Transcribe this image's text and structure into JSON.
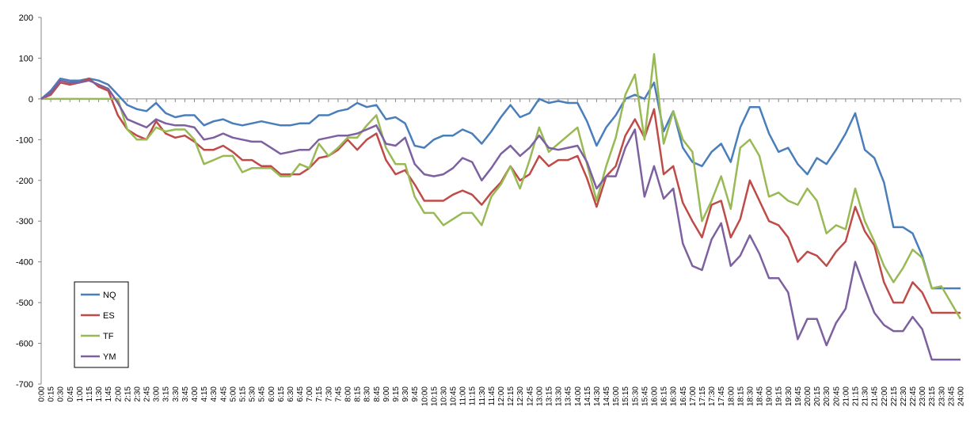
{
  "chart_data": {
    "type": "line",
    "title": "",
    "xlabel": "",
    "ylabel": "",
    "ylim": [
      -700,
      200
    ],
    "yticks": [
      200,
      100,
      0,
      -100,
      -200,
      -300,
      -400,
      -500,
      -600,
      -700
    ],
    "x": [
      "0:00",
      "0:15",
      "0:30",
      "0:45",
      "1:00",
      "1:15",
      "1:30",
      "1:45",
      "2:00",
      "2:15",
      "2:30",
      "2:45",
      "3:00",
      "3:15",
      "3:30",
      "3:45",
      "4:00",
      "4:15",
      "4:30",
      "4:45",
      "5:00",
      "5:15",
      "5:30",
      "5:45",
      "6:00",
      "6:15",
      "6:30",
      "6:45",
      "7:00",
      "7:15",
      "7:30",
      "7:45",
      "8:00",
      "8:15",
      "8:30",
      "8:45",
      "9:00",
      "9:15",
      "9:30",
      "9:45",
      "10:00",
      "10:15",
      "10:30",
      "10:45",
      "11:00",
      "11:15",
      "11:30",
      "11:45",
      "12:00",
      "12:15",
      "12:30",
      "12:45",
      "13:00",
      "13:15",
      "13:30",
      "13:45",
      "14:00",
      "14:15",
      "14:30",
      "14:45",
      "15:00",
      "15:15",
      "15:30",
      "15:45",
      "16:00",
      "16:15",
      "16:30",
      "16:45",
      "17:00",
      "17:15",
      "17:30",
      "17:45",
      "18:00",
      "18:15",
      "18:30",
      "18:45",
      "19:00",
      "19:15",
      "19:30",
      "19:45",
      "20:00",
      "20:15",
      "20:30",
      "20:45",
      "21:00",
      "21:15",
      "21:30",
      "21:45",
      "22:00",
      "22:15",
      "22:30",
      "22:45",
      "23:00",
      "23:15",
      "23:30",
      "23:45",
      "24:00"
    ],
    "legend_position": "bottom-left",
    "grid": false,
    "series": [
      {
        "name": "NQ",
        "color": "#4a7ebb",
        "values": [
          0,
          20,
          50,
          45,
          45,
          50,
          45,
          35,
          10,
          -15,
          -25,
          -30,
          -10,
          -35,
          -45,
          -40,
          -40,
          -65,
          -55,
          -50,
          -60,
          -65,
          -60,
          -55,
          -60,
          -65,
          -65,
          -60,
          -60,
          -40,
          -40,
          -30,
          -25,
          -10,
          -20,
          -15,
          -50,
          -45,
          -60,
          -115,
          -120,
          -100,
          -90,
          -90,
          -75,
          -85,
          -110,
          -80,
          -45,
          -15,
          -45,
          -35,
          0,
          -10,
          -5,
          -10,
          -10,
          -55,
          -115,
          -70,
          -40,
          0,
          10,
          0,
          40,
          -80,
          -30,
          -120,
          -155,
          -165,
          -130,
          -110,
          -155,
          -70,
          -20,
          -20,
          -85,
          -130,
          -120,
          -160,
          -185,
          -145,
          -160,
          -125,
          -85,
          -35,
          -125,
          -145,
          -205,
          -315,
          -315,
          -330,
          -385,
          -465,
          -465,
          -465,
          -465
        ]
      },
      {
        "name": "ES",
        "color": "#be4b48",
        "values": [
          0,
          10,
          40,
          35,
          40,
          50,
          30,
          20,
          -40,
          -75,
          -90,
          -100,
          -55,
          -85,
          -95,
          -90,
          -105,
          -125,
          -125,
          -115,
          -130,
          -150,
          -150,
          -165,
          -165,
          -185,
          -185,
          -185,
          -170,
          -145,
          -140,
          -125,
          -100,
          -125,
          -100,
          -85,
          -150,
          -185,
          -175,
          -210,
          -250,
          -250,
          -250,
          -235,
          -225,
          -235,
          -260,
          -230,
          -205,
          -165,
          -200,
          -185,
          -140,
          -165,
          -150,
          -150,
          -140,
          -195,
          -265,
          -190,
          -165,
          -90,
          -50,
          -95,
          -25,
          -185,
          -165,
          -255,
          -300,
          -340,
          -260,
          -250,
          -340,
          -295,
          -200,
          -250,
          -300,
          -310,
          -340,
          -400,
          -375,
          -385,
          -410,
          -375,
          -350,
          -265,
          -325,
          -360,
          -450,
          -500,
          -500,
          -450,
          -475,
          -525,
          -525,
          -525,
          -525
        ]
      },
      {
        "name": "TF",
        "color": "#98b954",
        "values": [
          0,
          0,
          0,
          0,
          0,
          0,
          0,
          0,
          0,
          -75,
          -100,
          -100,
          -70,
          -80,
          -75,
          -75,
          -100,
          -160,
          -150,
          -140,
          -140,
          -180,
          -170,
          -170,
          -170,
          -190,
          -190,
          -160,
          -170,
          -110,
          -140,
          -120,
          -95,
          -95,
          -65,
          -40,
          -120,
          -160,
          -160,
          -240,
          -280,
          -280,
          -310,
          -295,
          -280,
          -280,
          -310,
          -240,
          -210,
          -165,
          -220,
          -150,
          -70,
          -130,
          -110,
          -90,
          -70,
          -160,
          -250,
          -165,
          -95,
          10,
          60,
          -100,
          110,
          -110,
          -30,
          -100,
          -130,
          -300,
          -250,
          -190,
          -270,
          -120,
          -100,
          -140,
          -240,
          -230,
          -250,
          -260,
          -220,
          -250,
          -330,
          -310,
          -320,
          -220,
          -300,
          -350,
          -410,
          -450,
          -415,
          -370,
          -390,
          -465,
          -460,
          -500,
          -540
        ]
      },
      {
        "name": "YM",
        "color": "#7d60a0",
        "values": [
          0,
          15,
          45,
          40,
          40,
          45,
          35,
          25,
          -10,
          -50,
          -60,
          -70,
          -50,
          -60,
          -65,
          -65,
          -70,
          -100,
          -95,
          -85,
          -95,
          -100,
          -105,
          -105,
          -120,
          -135,
          -130,
          -125,
          -125,
          -100,
          -95,
          -90,
          -90,
          -85,
          -75,
          -65,
          -110,
          -115,
          -95,
          -160,
          -185,
          -190,
          -185,
          -170,
          -145,
          -155,
          -200,
          -170,
          -135,
          -115,
          -140,
          -120,
          -90,
          -120,
          -125,
          -120,
          -115,
          -155,
          -220,
          -190,
          -190,
          -120,
          -75,
          -240,
          -165,
          -245,
          -220,
          -355,
          -410,
          -420,
          -345,
          -305,
          -410,
          -385,
          -335,
          -380,
          -440,
          -440,
          -475,
          -590,
          -540,
          -540,
          -605,
          -550,
          -515,
          -400,
          -465,
          -525,
          -555,
          -570,
          -570,
          -535,
          -565,
          -640,
          -640,
          -640,
          -640
        ]
      }
    ]
  }
}
